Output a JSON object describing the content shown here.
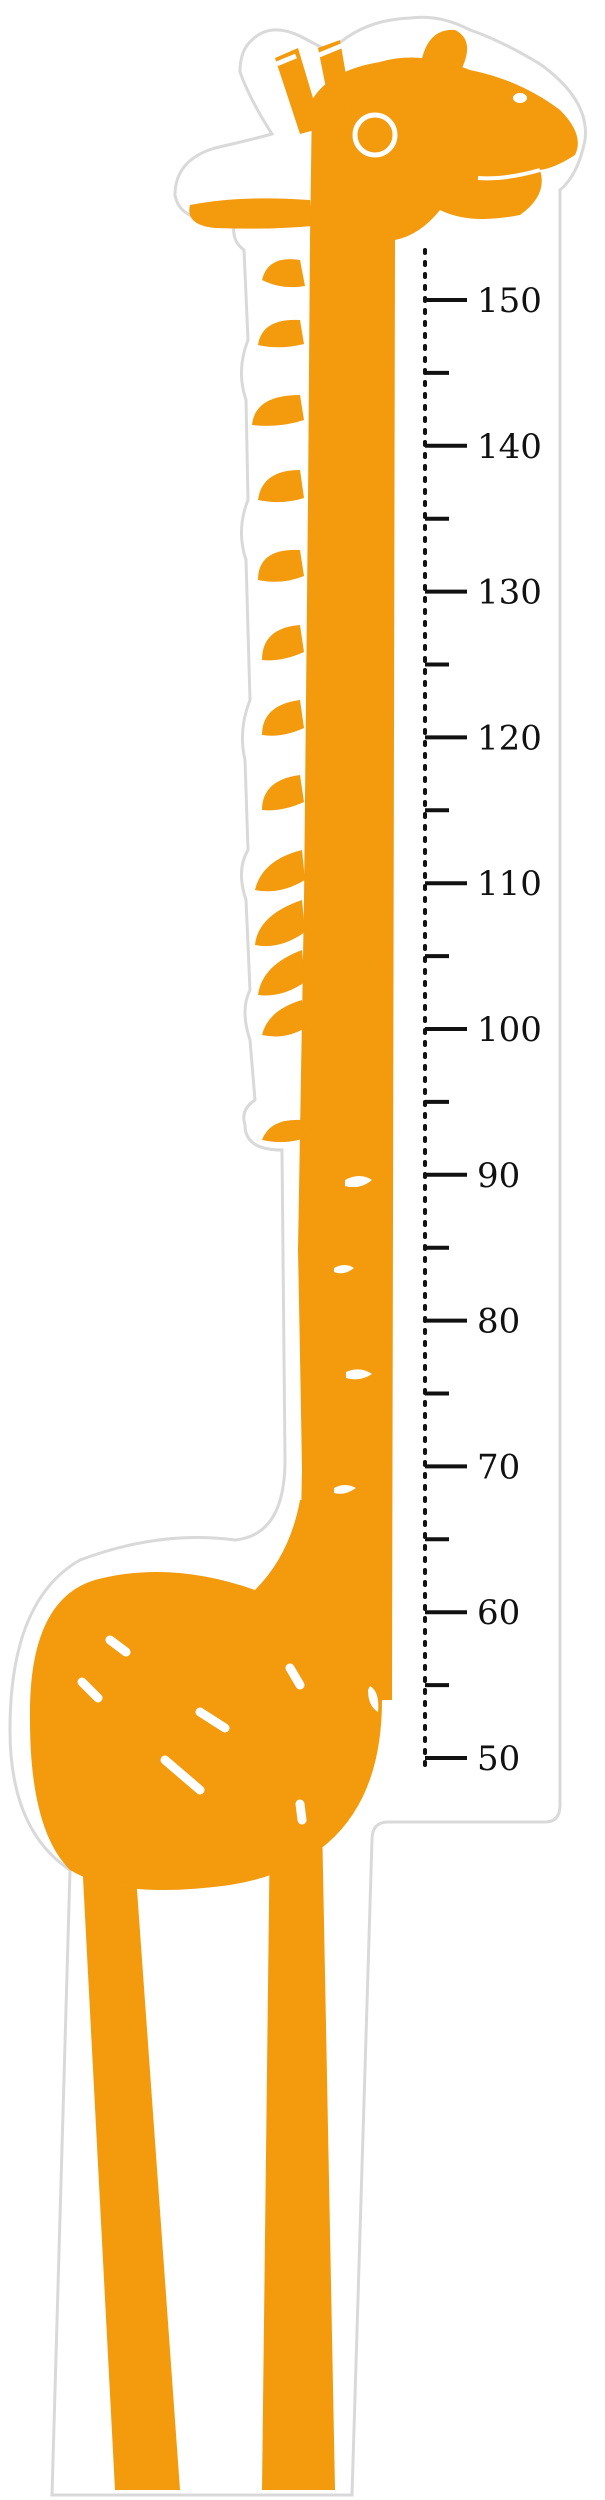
{
  "title": "",
  "colors": {
    "body": "#F39A0D",
    "outline": "#D9D9D9",
    "background": "#FFFFFF",
    "ink": "#111111"
  },
  "ruler": {
    "unit": "",
    "major_ticks": [
      {
        "value": 150,
        "label": "150"
      },
      {
        "value": 140,
        "label": "140"
      },
      {
        "value": 130,
        "label": "130"
      },
      {
        "value": 120,
        "label": "120"
      },
      {
        "value": 110,
        "label": "110"
      },
      {
        "value": 100,
        "label": "100"
      },
      {
        "value": 90,
        "label": "90"
      },
      {
        "value": 80,
        "label": "80"
      },
      {
        "value": 70,
        "label": "70"
      },
      {
        "value": 60,
        "label": "60"
      },
      {
        "value": 50,
        "label": "50"
      }
    ],
    "range": [
      50,
      150
    ]
  }
}
